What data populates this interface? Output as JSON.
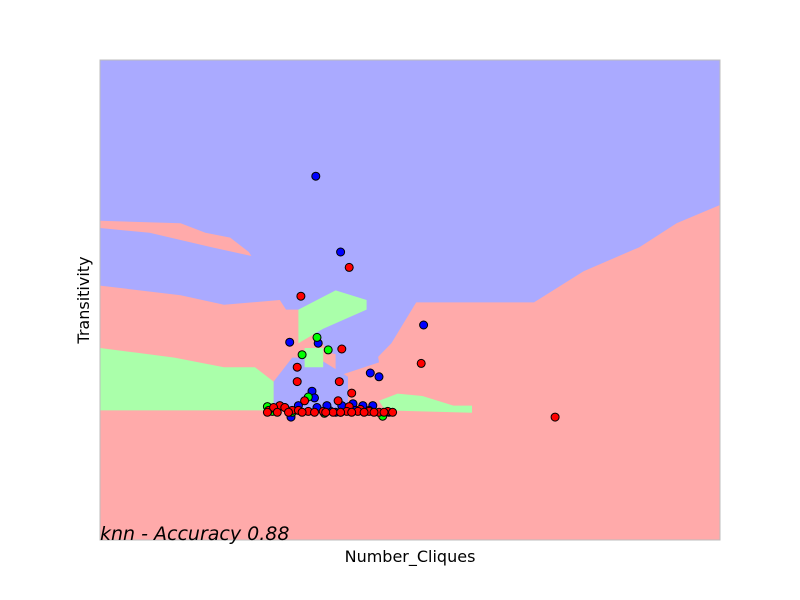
{
  "chart_data": {
    "type": "scatter",
    "title": "",
    "xlabel": "Number_Cliques",
    "ylabel": "Transitivity",
    "annotation": "knn - Accuracy 0.88",
    "xlim": [
      0,
      100
    ],
    "ylim": [
      0,
      100
    ],
    "grid": false,
    "legend": "none",
    "ticks": "none",
    "region_colors": {
      "class_blue": "#aaaaff",
      "class_red": "#ffaaaa",
      "class_green": "#aaffaa"
    },
    "point_colors": {
      "blue": "#0000ff",
      "red": "#ff0000",
      "green": "#00ff00"
    },
    "decision_regions": [
      {
        "class": "blue",
        "polygon": [
          [
            0,
            100
          ],
          [
            100,
            100
          ],
          [
            100,
            69.8
          ],
          [
            93,
            66
          ],
          [
            87,
            61
          ],
          [
            78,
            56
          ],
          [
            70,
            49.5
          ],
          [
            51,
            49.5
          ],
          [
            47,
            41
          ],
          [
            44,
            37
          ],
          [
            37,
            39
          ],
          [
            33,
            46
          ],
          [
            40,
            51
          ],
          [
            43,
            56
          ],
          [
            48,
            62
          ],
          [
            55,
            66.5
          ],
          [
            63,
            67
          ],
          [
            58,
            63.5
          ],
          [
            50,
            60
          ],
          [
            44,
            50
          ],
          [
            40,
            49
          ],
          [
            36,
            48
          ],
          [
            30,
            48
          ],
          [
            27,
            54
          ],
          [
            24,
            60
          ],
          [
            21,
            63
          ],
          [
            17,
            64
          ],
          [
            13,
            66
          ],
          [
            0,
            66.5
          ]
        ]
      },
      {
        "class": "blue",
        "polygon": [
          [
            0,
            53
          ],
          [
            13,
            51
          ],
          [
            20,
            49
          ],
          [
            29,
            50
          ],
          [
            32,
            54
          ],
          [
            30,
            58
          ],
          [
            25,
            59
          ],
          [
            18,
            61
          ],
          [
            8,
            64
          ],
          [
            0,
            65
          ]
        ]
      },
      {
        "class": "blue",
        "polygon": [
          [
            28,
            27
          ],
          [
            40,
            27
          ],
          [
            40,
            34
          ],
          [
            35,
            38
          ],
          [
            31,
            38
          ],
          [
            28,
            33
          ]
        ]
      },
      {
        "class": "blue",
        "polygon": [
          [
            38,
            43
          ],
          [
            44,
            45.5
          ],
          [
            45,
            37
          ],
          [
            38,
            34
          ]
        ]
      },
      {
        "class": "green",
        "polygon": [
          [
            0,
            27
          ],
          [
            28,
            27
          ],
          [
            28,
            33
          ],
          [
            25,
            36
          ],
          [
            20,
            36
          ],
          [
            12,
            38
          ],
          [
            6,
            39
          ],
          [
            0,
            40
          ]
        ]
      },
      {
        "class": "green",
        "polygon": [
          [
            32,
            41
          ],
          [
            36,
            44
          ],
          [
            43,
            48
          ],
          [
            43,
            50
          ],
          [
            38,
            52
          ],
          [
            32,
            48
          ]
        ]
      },
      {
        "class": "green",
        "polygon": [
          [
            46,
            27
          ],
          [
            60,
            26.5
          ],
          [
            60,
            28
          ],
          [
            57,
            28
          ],
          [
            52,
            30
          ],
          [
            48,
            30.5
          ],
          [
            45,
            29
          ]
        ]
      },
      {
        "class": "green",
        "polygon": [
          [
            33,
            36
          ],
          [
            36,
            36
          ],
          [
            36,
            40
          ],
          [
            33,
            40
          ]
        ]
      }
    ],
    "series": [
      {
        "name": "",
        "class": "blue",
        "points": [
          [
            34.8,
            75.8
          ],
          [
            38.8,
            60
          ],
          [
            52.2,
            44.8
          ],
          [
            30.6,
            41.2
          ],
          [
            35.2,
            41
          ],
          [
            43.6,
            34.8
          ],
          [
            45,
            34
          ],
          [
            34.2,
            31
          ],
          [
            34.6,
            29.6
          ],
          [
            32,
            28
          ],
          [
            37,
            27
          ],
          [
            39,
            28
          ],
          [
            40.8,
            28.4
          ],
          [
            42.4,
            28
          ],
          [
            44,
            28
          ],
          [
            41.2,
            27
          ],
          [
            46.6,
            26.6
          ],
          [
            30.8,
            25.6
          ],
          [
            38,
            26.6
          ],
          [
            35,
            27.6
          ],
          [
            36.6,
            28
          ]
        ]
      },
      {
        "name": "",
        "class": "red",
        "points": [
          [
            40.2,
            56.8
          ],
          [
            32.4,
            50.8
          ],
          [
            39,
            39.8
          ],
          [
            51.8,
            36.8
          ],
          [
            31.8,
            36
          ],
          [
            38.6,
            33
          ],
          [
            31.8,
            33
          ],
          [
            40.6,
            30.6
          ],
          [
            38.4,
            29
          ],
          [
            33,
            29
          ],
          [
            40.2,
            27.8
          ],
          [
            42,
            27.2
          ],
          [
            43.4,
            27
          ],
          [
            29,
            28
          ],
          [
            27.2,
            27
          ],
          [
            28,
            27.6
          ],
          [
            29.8,
            27.6
          ],
          [
            31,
            27
          ],
          [
            32,
            27
          ],
          [
            33.6,
            26.8
          ],
          [
            36,
            26.8
          ],
          [
            37.6,
            26.6
          ],
          [
            39.8,
            26.8
          ],
          [
            41.6,
            26.8
          ],
          [
            43.4,
            26.8
          ],
          [
            45,
            26.6
          ],
          [
            46.4,
            26.8
          ],
          [
            27,
            26.6
          ],
          [
            28.6,
            26.6
          ],
          [
            30.4,
            26.6
          ],
          [
            32.6,
            26.6
          ],
          [
            34.6,
            26.6
          ],
          [
            36.4,
            26.6
          ],
          [
            38.8,
            26.6
          ],
          [
            40.6,
            26.6
          ],
          [
            42.6,
            26.6
          ],
          [
            44.2,
            26.6
          ],
          [
            45.8,
            26.6
          ],
          [
            47.2,
            26.6
          ],
          [
            73.4,
            25.6
          ]
        ]
      },
      {
        "name": "",
        "class": "green",
        "points": [
          [
            35,
            42.2
          ],
          [
            36.8,
            39.6
          ],
          [
            32.6,
            38.6
          ],
          [
            33.6,
            29.8
          ],
          [
            27,
            27.8
          ],
          [
            29.8,
            27.6
          ],
          [
            27.8,
            26.8
          ],
          [
            31,
            26.6
          ],
          [
            36.2,
            26.4
          ],
          [
            38.8,
            26.6
          ],
          [
            45.6,
            25.8
          ]
        ]
      }
    ]
  }
}
